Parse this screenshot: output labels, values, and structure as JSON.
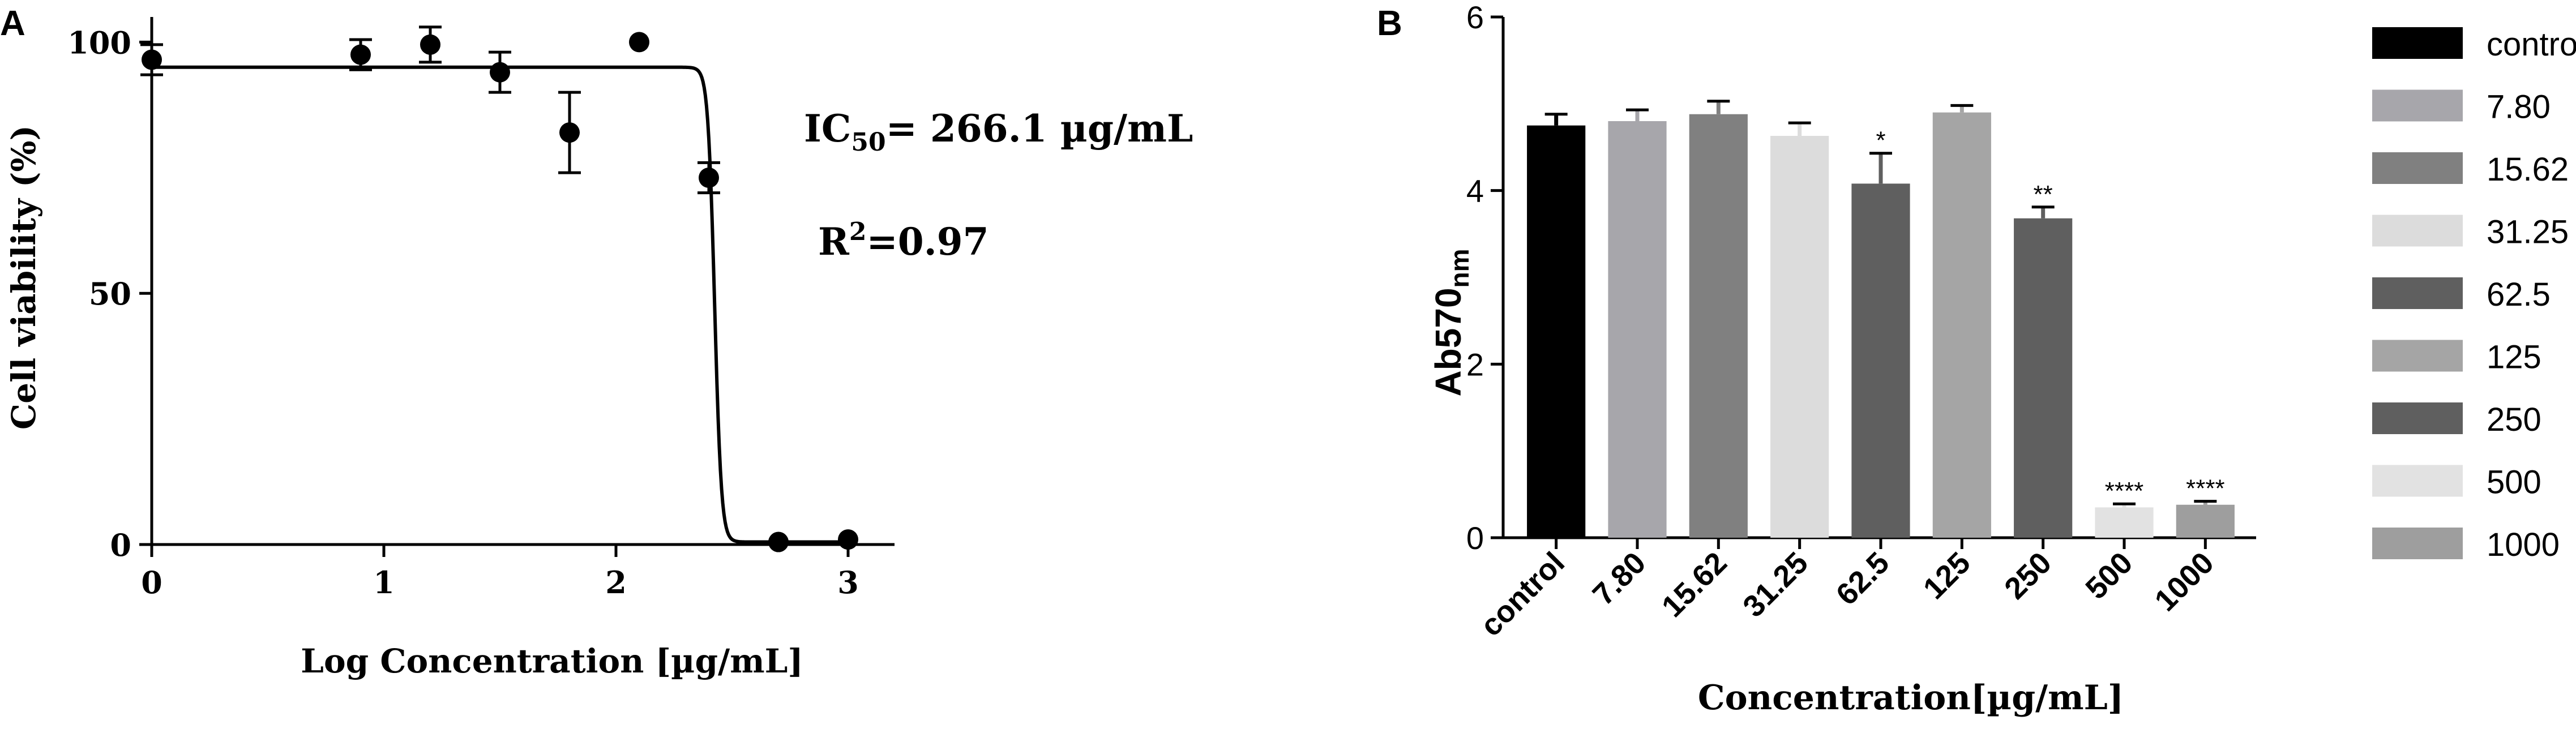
{
  "panels": {
    "a_letter": "A",
    "b_letter": "B"
  },
  "chart_data": [
    {
      "type": "scatter",
      "panel": "A",
      "xlabel": "Log Concentration [µg/mL]",
      "ylabel": "Cell viability (%)",
      "xlim": [
        0,
        3.2
      ],
      "ylim": [
        0,
        105
      ],
      "x_ticks": [
        "0",
        "1",
        "2",
        "3"
      ],
      "y_ticks": [
        "0",
        "50",
        "100"
      ],
      "points": [
        {
          "x": 0.0,
          "y": 96.5,
          "err": 3
        },
        {
          "x": 0.9,
          "y": 97.5,
          "err": 3
        },
        {
          "x": 1.2,
          "y": 99.5,
          "err": 3.5
        },
        {
          "x": 1.5,
          "y": 94,
          "err": 4
        },
        {
          "x": 1.8,
          "y": 82,
          "err": 8
        },
        {
          "x": 2.1,
          "y": 100,
          "err": 0
        },
        {
          "x": 2.4,
          "y": 73,
          "err": 3
        },
        {
          "x": 2.7,
          "y": 0.5,
          "err": 0
        },
        {
          "x": 3.0,
          "y": 1,
          "err": 0
        }
      ],
      "fit": {
        "top": 95,
        "bottom": 0.5,
        "logic50": 2.425,
        "hill": -30
      },
      "annotations": {
        "ic50_prefix": "IC",
        "ic50_sub": "50",
        "ic50_value": "= 266.1 µg/mL",
        "r2_prefix": "R",
        "r2_sup": "2",
        "r2_value": "=0.97"
      }
    },
    {
      "type": "bar",
      "panel": "B",
      "xlabel": "Concentration[µg/mL]",
      "ylabel_main": "Ab570",
      "ylabel_sub": "nm",
      "ylim": [
        0,
        6
      ],
      "y_ticks": [
        "0",
        "2",
        "4",
        "6"
      ],
      "categories": [
        "control",
        "7.80",
        "15.62",
        "31.25",
        "62.5",
        "125",
        "250",
        "500",
        "1000"
      ],
      "values": [
        4.75,
        4.8,
        4.88,
        4.63,
        4.08,
        4.9,
        3.68,
        0.35,
        0.38
      ],
      "errors": [
        0.13,
        0.13,
        0.15,
        0.15,
        0.35,
        0.08,
        0.13,
        0.04,
        0.04
      ],
      "significance": [
        "",
        "",
        "",
        "",
        "*",
        "",
        "**",
        "****",
        "****"
      ],
      "colors": [
        "#000000",
        "#a7a6ab",
        "#808080",
        "#dcdcdc",
        "#5f5f5f",
        "#a5a5a5",
        "#5f5f5f",
        "#e2e2e2",
        "#9e9e9e"
      ],
      "legend": [
        "control",
        "7.80",
        "15.62",
        "31.25",
        "62.5",
        "125",
        "250",
        "500",
        "1000"
      ],
      "legend_placement": "right"
    }
  ]
}
